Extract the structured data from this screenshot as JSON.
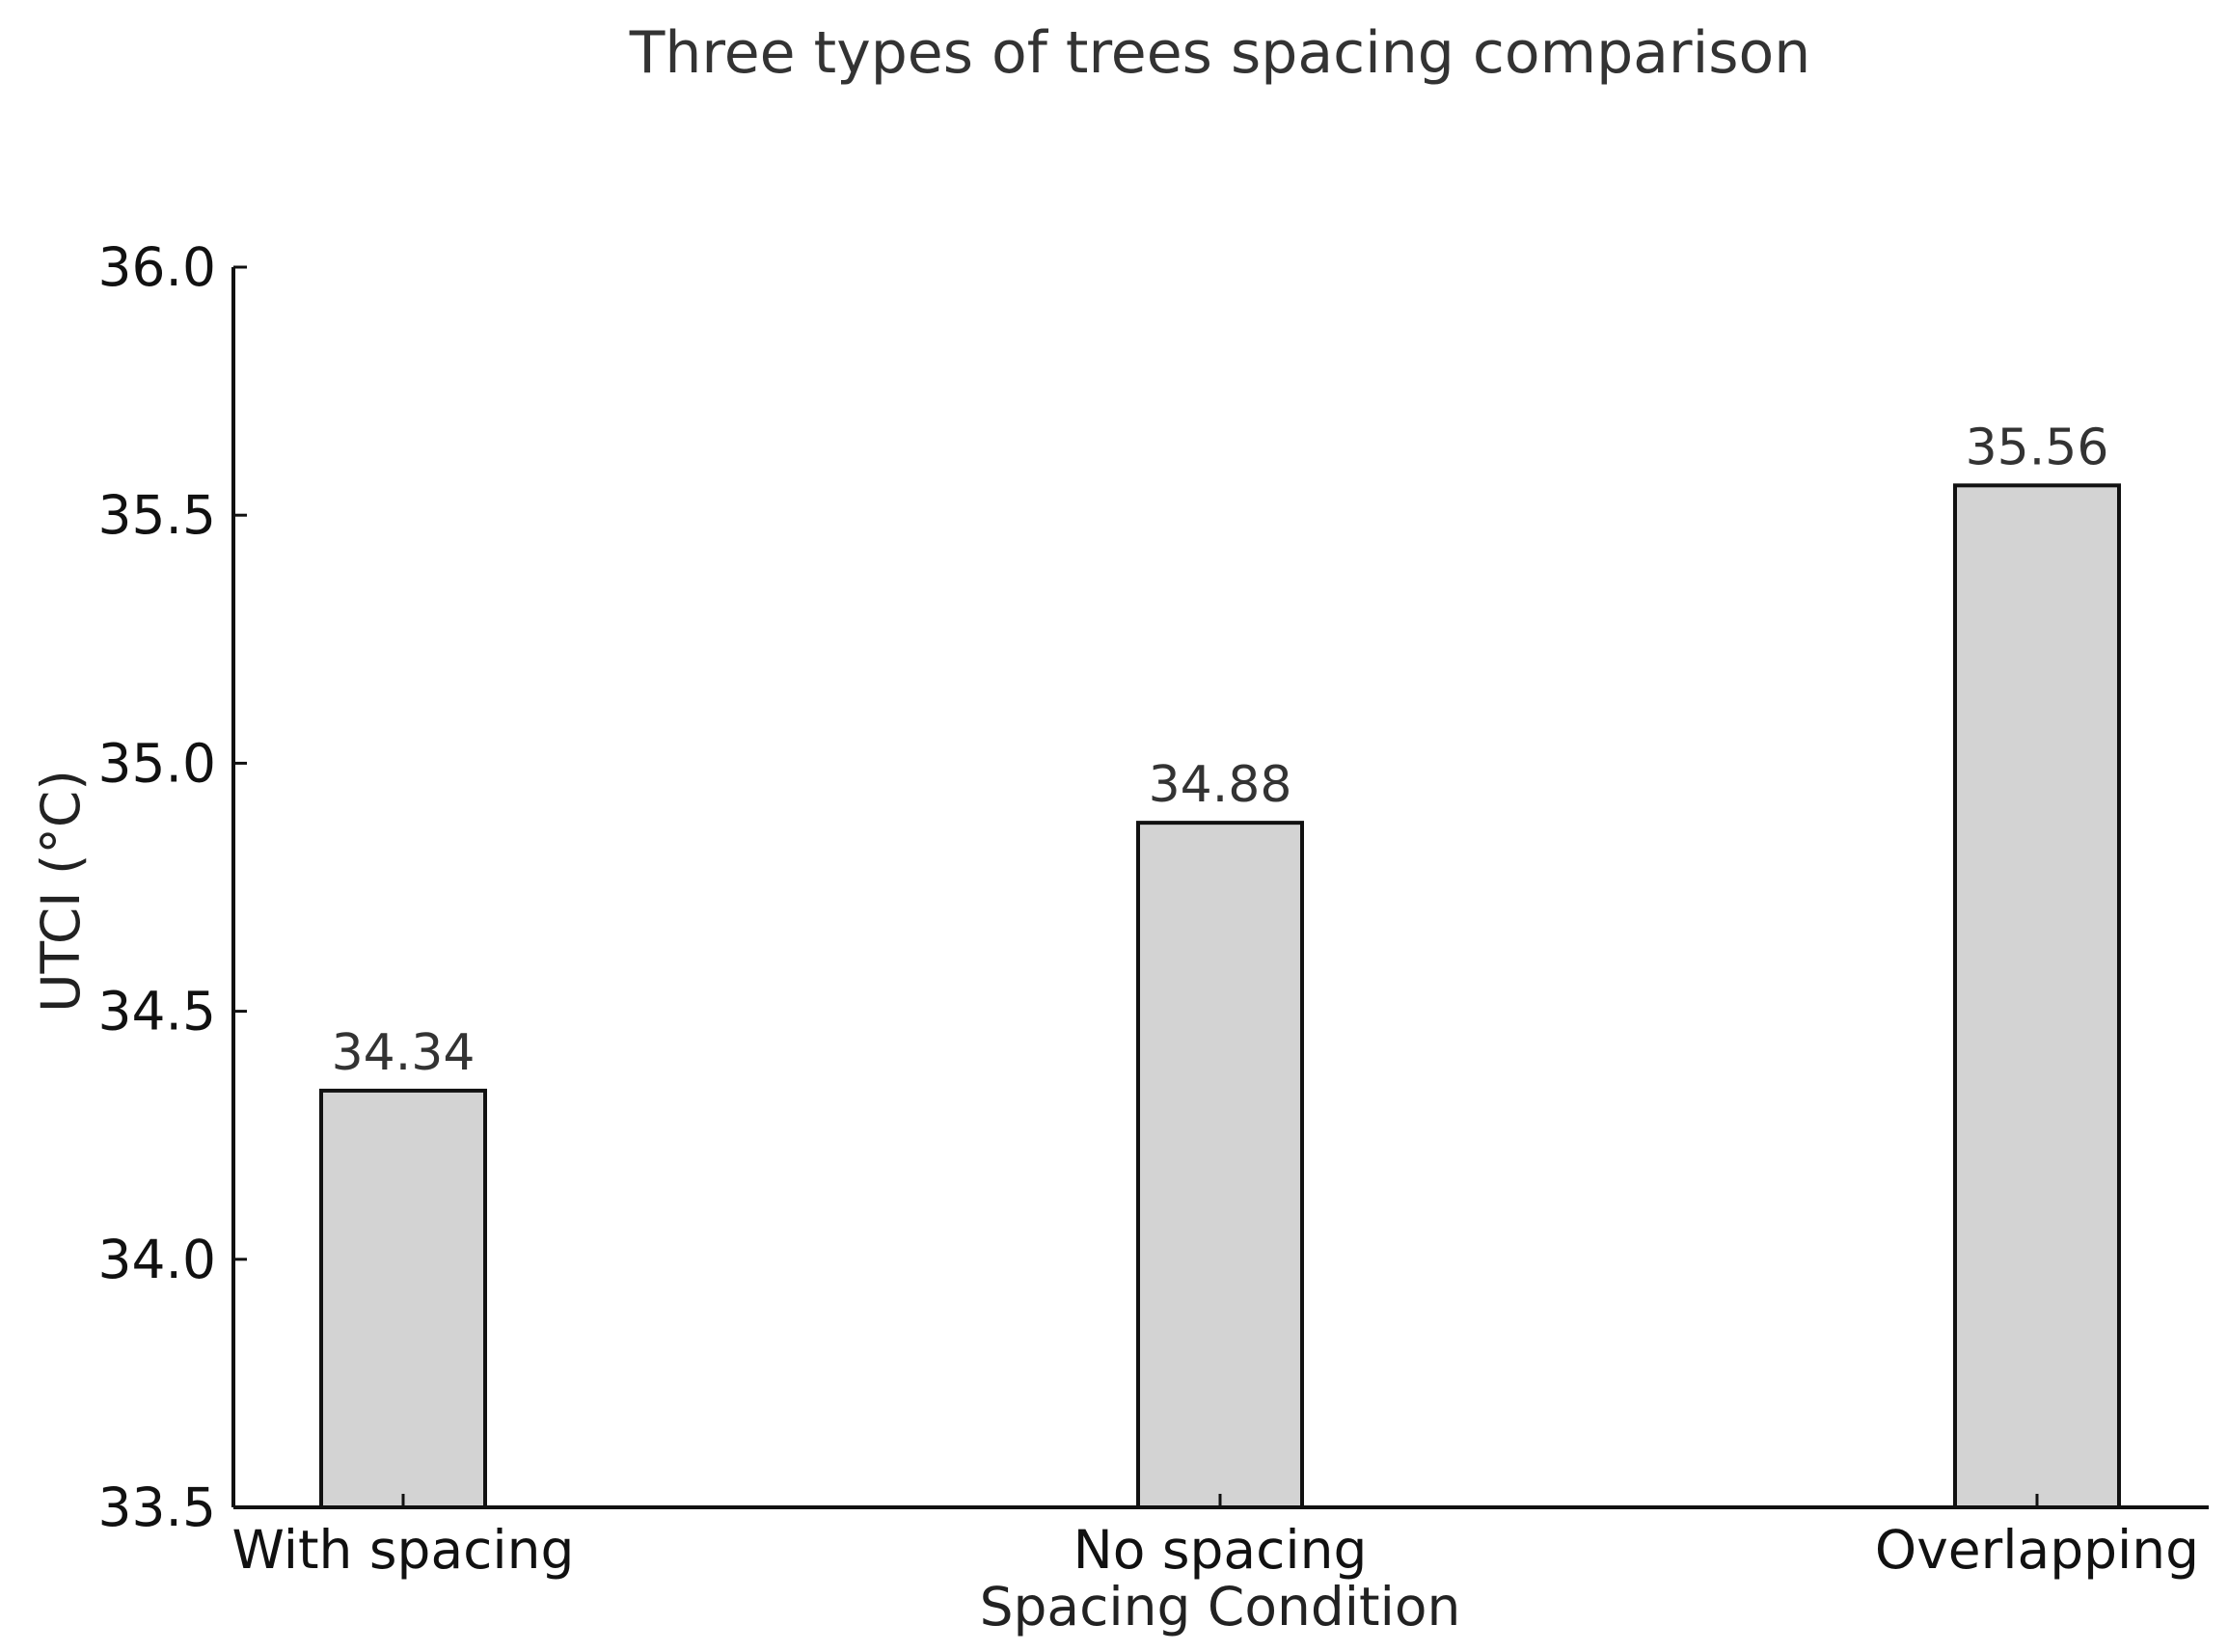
{
  "chart_data": {
    "type": "bar",
    "title": "Three types of trees spacing comparison",
    "xlabel": "Spacing Condition",
    "ylabel": "UTCI (°C)",
    "categories": [
      "With spacing",
      "No spacing",
      "Overlapping"
    ],
    "values": [
      34.34,
      34.88,
      35.56
    ],
    "data_labels": [
      "34.34",
      "34.88",
      "35.56"
    ],
    "ylim": [
      33.5,
      36.0
    ],
    "yticks": [
      33.5,
      34.0,
      34.5,
      35.0,
      35.5,
      36.0
    ],
    "ytick_labels": [
      "33.5",
      "34.0",
      "34.5",
      "35.0",
      "35.5",
      "36.0"
    ],
    "grid": false,
    "bar_color": "#d3d3d3",
    "edge_color": "#111111"
  }
}
